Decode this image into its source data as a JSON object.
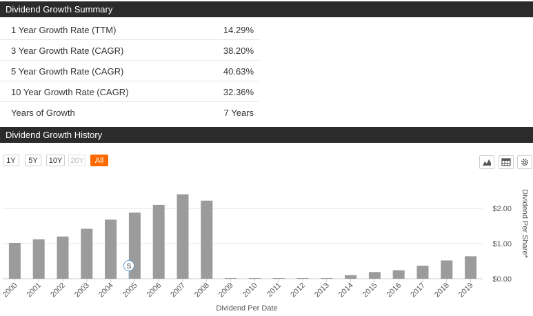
{
  "summary": {
    "title": "Dividend Growth Summary",
    "rows": [
      {
        "label": "1 Year Growth Rate (TTM)",
        "value": "14.29%"
      },
      {
        "label": "3 Year Growth Rate (CAGR)",
        "value": "38.20%"
      },
      {
        "label": "5 Year Growth Rate (CAGR)",
        "value": "40.63%"
      },
      {
        "label": "10 Year Growth Rate (CAGR)",
        "value": "32.36%"
      },
      {
        "label": "Years of Growth",
        "value": "7 Years"
      }
    ]
  },
  "history": {
    "title": "Dividend Growth History",
    "ranges": [
      {
        "label": "1Y",
        "state": "normal"
      },
      {
        "label": "5Y",
        "state": "normal"
      },
      {
        "label": "10Y",
        "state": "normal"
      },
      {
        "label": "20Y",
        "state": "disabled"
      },
      {
        "label": "All",
        "state": "active"
      }
    ],
    "tools": [
      "area-chart-icon",
      "table-icon",
      "gear-icon"
    ],
    "split_marker": "S"
  },
  "chart_data": {
    "type": "bar",
    "categories": [
      "2000",
      "2001",
      "2002",
      "2003",
      "2004",
      "2005",
      "2006",
      "2007",
      "2008",
      "2009",
      "2010",
      "2011",
      "2012",
      "2013",
      "2014",
      "2015",
      "2016",
      "2017",
      "2018",
      "2019"
    ],
    "values": [
      1.02,
      1.12,
      1.2,
      1.42,
      1.68,
      1.88,
      2.1,
      2.4,
      2.22,
      0.02,
      0.02,
      0.02,
      0.02,
      0.02,
      0.1,
      0.19,
      0.24,
      0.37,
      0.52,
      0.64
    ],
    "xlabel": "Dividend Per Date",
    "ylabel": "Dividend Per Share*",
    "yticks": [
      "$0.00",
      "$1.00",
      "$2.00"
    ],
    "ytick_values": [
      0,
      1,
      2
    ],
    "ylim": [
      0,
      2.5
    ],
    "grid": true,
    "bar_color": "#9b9b9b",
    "accent": "#ff6a00"
  }
}
